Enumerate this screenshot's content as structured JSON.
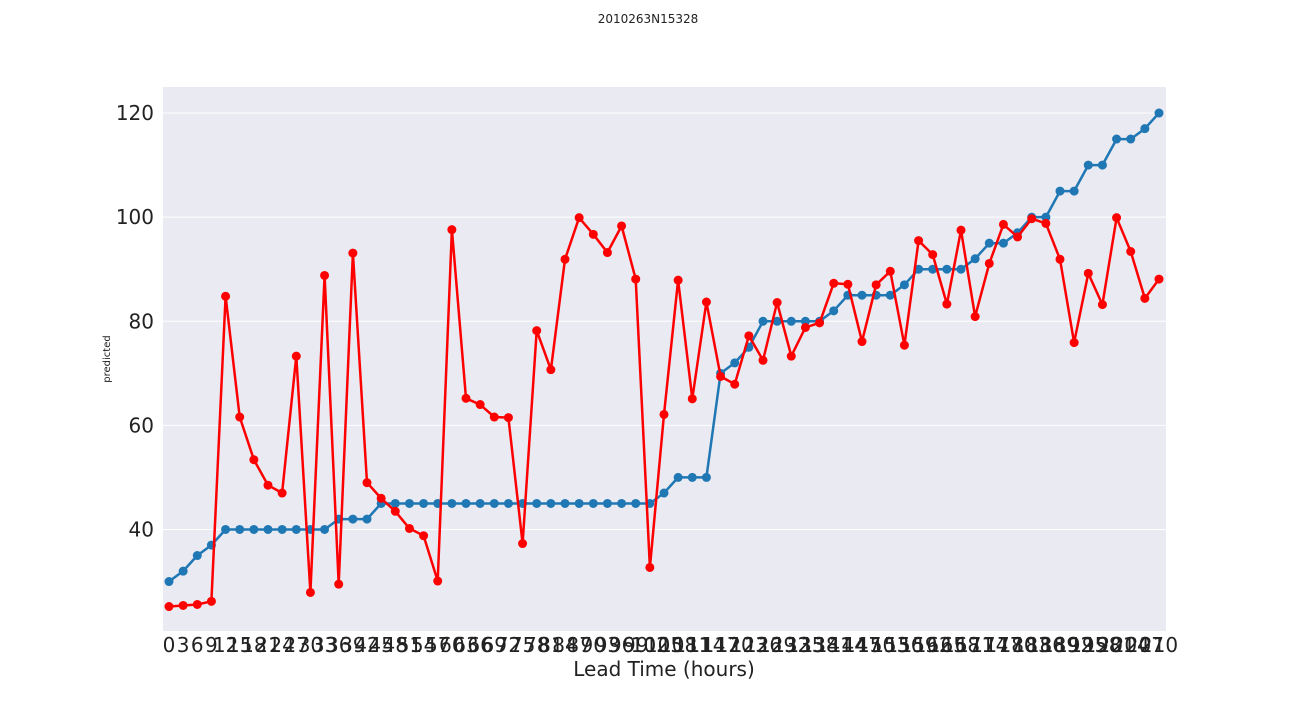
{
  "chart_data": {
    "type": "line",
    "title": "2010263N15328",
    "xlabel": "Lead Time (hours)",
    "ylabel": "predicted",
    "x": [
      0,
      3,
      6,
      9,
      12,
      15,
      18,
      21,
      24,
      27,
      30,
      33,
      36,
      39,
      42,
      45,
      48,
      51,
      54,
      57,
      60,
      63,
      66,
      69,
      72,
      75,
      78,
      81,
      84,
      87,
      90,
      93,
      96,
      99,
      102,
      105,
      108,
      111,
      114,
      117,
      120,
      123,
      126,
      129,
      132,
      135,
      138,
      141,
      144,
      147,
      150,
      153,
      156,
      159,
      162,
      165,
      168,
      171,
      174,
      177,
      180,
      183,
      186,
      189,
      192,
      195,
      198,
      201,
      204,
      207,
      210
    ],
    "x_tick_labels": [
      "0",
      "3",
      "6",
      "9",
      "12",
      "15",
      "18",
      "21",
      "24",
      "27",
      "30",
      "33",
      "36",
      "39",
      "42",
      "45",
      "48",
      "51",
      "54",
      "57",
      "60",
      "63",
      "66",
      "69",
      "72",
      "75",
      "78",
      "81",
      "84",
      "87",
      "90",
      "93",
      "96",
      "99",
      "102",
      "105",
      "108",
      "111",
      "114",
      "117",
      "120",
      "123",
      "126",
      "129",
      "132",
      "135",
      "138",
      "141",
      "144",
      "147",
      "150",
      "153",
      "156",
      "159",
      "162",
      "165",
      "168",
      "171",
      "174",
      "177",
      "180",
      "183",
      "186",
      "189",
      "192",
      "195",
      "198",
      "201",
      "204",
      "207",
      "210"
    ],
    "y_ticks": [
      40,
      60,
      80,
      100,
      120
    ],
    "ylim": [
      20.5,
      125
    ],
    "grid": true,
    "series": [
      {
        "color": "#1f77b4",
        "values": [
          30,
          32,
          35,
          37,
          40,
          40,
          40,
          40,
          40,
          40,
          40,
          40,
          42,
          42,
          42,
          45,
          45,
          45,
          45,
          45,
          45,
          45,
          45,
          45,
          45,
          45,
          45,
          45,
          45,
          45,
          45,
          45,
          45,
          45,
          45,
          47,
          50,
          50,
          50,
          70,
          72,
          75,
          80,
          80,
          80,
          80,
          80,
          82,
          85,
          85,
          85,
          85,
          87,
          90,
          90,
          90,
          90,
          92,
          95,
          95,
          97,
          100,
          100,
          105,
          105,
          110,
          110,
          115,
          115,
          117,
          120
        ]
      },
      {
        "color": "#ff0000",
        "values": [
          25.2,
          25.4,
          25.6,
          26.2,
          84.8,
          61.6,
          53.4,
          48.5,
          47,
          73.3,
          27.9,
          88.8,
          29.5,
          93.1,
          49,
          46,
          43.5,
          40.2,
          38.8,
          30.1,
          97.6,
          65.2,
          64,
          61.6,
          61.5,
          37.3,
          78.2,
          70.7,
          91.9,
          99.9,
          96.7,
          93.2,
          98.3,
          88.1,
          32.7,
          62.1,
          87.9,
          65.1,
          83.7,
          69.4,
          67.9,
          77.2,
          72.5,
          83.6,
          73.3,
          78.8,
          79.7,
          87.3,
          87.1,
          76.1,
          87,
          89.6,
          75.4,
          95.5,
          92.8,
          83.3,
          97.5,
          80.9,
          91.1,
          98.6,
          96.2,
          99.7,
          98.8,
          91.9,
          75.9,
          89.2,
          83.2,
          99.9,
          93.4,
          84.4,
          88.1
        ]
      }
    ]
  }
}
